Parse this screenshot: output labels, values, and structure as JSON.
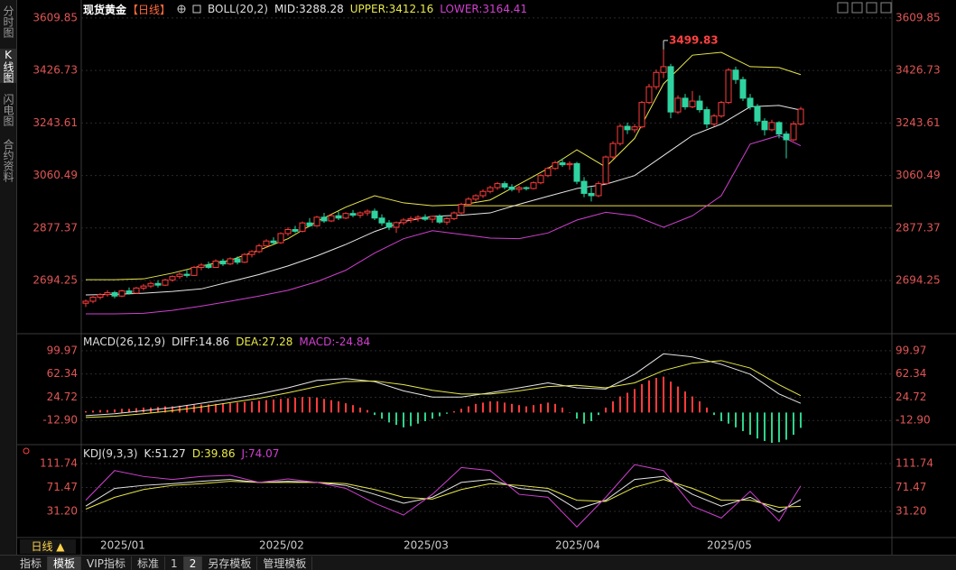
{
  "header": {
    "title": "现货黄金",
    "period": "【日线】"
  },
  "tabs": [
    "分时图",
    "K线图",
    "闪电图",
    "合约资料"
  ],
  "period_button": "日线 ▲",
  "toolbar": [
    "指标",
    "模板",
    "VIP指标",
    "标准",
    "1",
    "2",
    "另存模板",
    "管理模板"
  ],
  "chart_data": [
    {
      "type": "candlestick",
      "indicator": "BOLL(20,2)",
      "up_color": "#ff3b3b",
      "down_color": "#2ed3a0",
      "axis_color": "#e05555",
      "grid": true,
      "ylim": [
        2515,
        3641
      ],
      "yticks": [
        3609.85,
        3426.73,
        3243.61,
        3060.49,
        2877.37,
        2694.25
      ],
      "categories": [
        null,
        null,
        "2025/01",
        null,
        null,
        null,
        null,
        null,
        null,
        null,
        null,
        null,
        null,
        null,
        null,
        null,
        null,
        null,
        null,
        null,
        null,
        null,
        null,
        null,
        "2025/02",
        null,
        null,
        null,
        null,
        null,
        null,
        null,
        null,
        null,
        null,
        null,
        null,
        null,
        null,
        null,
        null,
        null,
        null,
        null,
        "2025/03",
        null,
        null,
        null,
        null,
        null,
        null,
        null,
        null,
        null,
        null,
        null,
        null,
        null,
        null,
        null,
        null,
        null,
        null,
        null,
        null,
        "2025/04",
        null,
        null,
        null,
        null,
        null,
        null,
        null,
        null,
        null,
        null,
        null,
        null,
        null,
        null,
        null,
        null,
        null,
        null,
        null,
        null,
        "2025/05",
        null,
        null,
        null,
        null,
        null,
        null,
        null,
        null,
        null,
        null,
        null,
        null,
        null
      ],
      "candles": [
        [
          2615,
          2628,
          2602,
          2622
        ],
        [
          2622,
          2640,
          2615,
          2636
        ],
        [
          2636,
          2650,
          2628,
          2645
        ],
        [
          2645,
          2660,
          2638,
          2652
        ],
        [
          2652,
          2658,
          2632,
          2640
        ],
        [
          2640,
          2662,
          2636,
          2658
        ],
        [
          2658,
          2670,
          2645,
          2650
        ],
        [
          2650,
          2672,
          2648,
          2668
        ],
        [
          2668,
          2682,
          2660,
          2675
        ],
        [
          2675,
          2690,
          2668,
          2684
        ],
        [
          2684,
          2695,
          2670,
          2678
        ],
        [
          2678,
          2700,
          2675,
          2696
        ],
        [
          2696,
          2712,
          2690,
          2708
        ],
        [
          2708,
          2722,
          2700,
          2716
        ],
        [
          2716,
          2730,
          2705,
          2712
        ],
        [
          2712,
          2745,
          2710,
          2740
        ],
        [
          2740,
          2755,
          2730,
          2748
        ],
        [
          2748,
          2760,
          2735,
          2740
        ],
        [
          2740,
          2768,
          2738,
          2762
        ],
        [
          2762,
          2770,
          2745,
          2752
        ],
        [
          2752,
          2775,
          2748,
          2770
        ],
        [
          2770,
          2778,
          2750,
          2758
        ],
        [
          2758,
          2790,
          2755,
          2785
        ],
        [
          2785,
          2800,
          2775,
          2795
        ],
        [
          2795,
          2822,
          2790,
          2815
        ],
        [
          2815,
          2838,
          2808,
          2832
        ],
        [
          2832,
          2845,
          2820,
          2826
        ],
        [
          2826,
          2862,
          2822,
          2858
        ],
        [
          2858,
          2880,
          2850,
          2872
        ],
        [
          2872,
          2885,
          2860,
          2866
        ],
        [
          2866,
          2900,
          2862,
          2895
        ],
        [
          2895,
          2912,
          2880,
          2885
        ],
        [
          2885,
          2920,
          2882,
          2915
        ],
        [
          2915,
          2930,
          2895,
          2902
        ],
        [
          2902,
          2925,
          2898,
          2920
        ],
        [
          2920,
          2935,
          2905,
          2912
        ],
        [
          2912,
          2932,
          2908,
          2928
        ],
        [
          2928,
          2940,
          2915,
          2922
        ],
        [
          2922,
          2935,
          2912,
          2930
        ],
        [
          2930,
          2942,
          2920,
          2936
        ],
        [
          2936,
          2945,
          2905,
          2912
        ],
        [
          2912,
          2925,
          2885,
          2895
        ],
        [
          2895,
          2905,
          2870,
          2880
        ],
        [
          2880,
          2900,
          2860,
          2896
        ],
        [
          2896,
          2912,
          2888,
          2905
        ],
        [
          2905,
          2918,
          2895,
          2910
        ],
        [
          2910,
          2922,
          2900,
          2915
        ],
        [
          2915,
          2925,
          2902,
          2908
        ],
        [
          2908,
          2920,
          2895,
          2918
        ],
        [
          2918,
          2925,
          2892,
          2898
        ],
        [
          2898,
          2915,
          2888,
          2910
        ],
        [
          2910,
          2935,
          2905,
          2930
        ],
        [
          2930,
          2965,
          2925,
          2960
        ],
        [
          2960,
          2985,
          2955,
          2978
        ],
        [
          2978,
          2995,
          2970,
          2990
        ],
        [
          2990,
          3012,
          2982,
          3005
        ],
        [
          3005,
          3025,
          2998,
          3018
        ],
        [
          3018,
          3038,
          3010,
          3032
        ],
        [
          3032,
          3040,
          3012,
          3020
        ],
        [
          3020,
          3030,
          3005,
          3012
        ],
        [
          3012,
          3025,
          3000,
          3018
        ],
        [
          3018,
          3022,
          3008,
          3015
        ],
        [
          3015,
          3040,
          3012,
          3035
        ],
        [
          3035,
          3065,
          3030,
          3060
        ],
        [
          3060,
          3090,
          3055,
          3085
        ],
        [
          3085,
          3112,
          3080,
          3105
        ],
        [
          3105,
          3120,
          3090,
          3098
        ],
        [
          3098,
          3110,
          3080,
          3102
        ],
        [
          3102,
          3108,
          3030,
          3040
        ],
        [
          3040,
          3055,
          2985,
          2998
        ],
        [
          2998,
          3020,
          2970,
          2990
        ],
        [
          2990,
          3040,
          2985,
          3032
        ],
        [
          3032,
          3130,
          3028,
          3125
        ],
        [
          3125,
          3180,
          3118,
          3172
        ],
        [
          3172,
          3240,
          3165,
          3232
        ],
        [
          3232,
          3245,
          3205,
          3220
        ],
        [
          3220,
          3240,
          3210,
          3230
        ],
        [
          3230,
          3320,
          3225,
          3315
        ],
        [
          3315,
          3380,
          3310,
          3370
        ],
        [
          3370,
          3430,
          3360,
          3420
        ],
        [
          3420,
          3499.83,
          3400,
          3440
        ],
        [
          3440,
          3450,
          3260,
          3282
        ],
        [
          3282,
          3340,
          3275,
          3330
        ],
        [
          3330,
          3345,
          3290,
          3300
        ],
        [
          3300,
          3355,
          3295,
          3320
        ],
        [
          3320,
          3340,
          3280,
          3290
        ],
        [
          3290,
          3300,
          3225,
          3240
        ],
        [
          3240,
          3275,
          3232,
          3268
        ],
        [
          3268,
          3320,
          3262,
          3315
        ],
        [
          3315,
          3435,
          3310,
          3428
        ],
        [
          3428,
          3440,
          3380,
          3395
        ],
        [
          3395,
          3405,
          3320,
          3330
        ],
        [
          3330,
          3345,
          3290,
          3300
        ],
        [
          3300,
          3310,
          3235,
          3250
        ],
        [
          3250,
          3260,
          3200,
          3220
        ],
        [
          3220,
          3255,
          3215,
          3245
        ],
        [
          3245,
          3250,
          3190,
          3205
        ],
        [
          3205,
          3215,
          3120,
          3185
        ],
        [
          3185,
          3250,
          3180,
          3240
        ],
        [
          3240,
          3300,
          3235,
          3292
        ]
      ],
      "x": [
        0,
        4,
        8,
        12,
        16,
        20,
        24,
        28,
        32,
        36,
        40,
        44,
        48,
        52,
        56,
        60,
        64,
        68,
        72,
        76,
        80,
        84,
        88,
        92,
        96,
        99
      ],
      "series": [
        {
          "name": "MID",
          "label": "MID:3288.28",
          "color": "#e6e6e6",
          "values": [
            2644,
            2646,
            2650,
            2656,
            2665,
            2690,
            2715,
            2745,
            2780,
            2820,
            2865,
            2900,
            2918,
            2922,
            2930,
            2960,
            2988,
            3015,
            3030,
            3060,
            3130,
            3200,
            3240,
            3300,
            3305,
            3288.28
          ]
        },
        {
          "name": "UPPER",
          "label": "UPPER:3412.16",
          "color": "#e8e84a",
          "values": [
            2697,
            2697,
            2700,
            2720,
            2745,
            2765,
            2800,
            2840,
            2900,
            2950,
            2990,
            2965,
            2955,
            2958,
            2975,
            3030,
            3085,
            3150,
            3090,
            3190,
            3380,
            3480,
            3490,
            3440,
            3437,
            3412.16
          ]
        },
        {
          "name": "LOWER",
          "label": "LOWER:3164.41",
          "color": "#d040d0",
          "values": [
            2578,
            2578,
            2580,
            2590,
            2605,
            2622,
            2640,
            2660,
            2690,
            2730,
            2790,
            2840,
            2868,
            2855,
            2842,
            2840,
            2860,
            2905,
            2932,
            2920,
            2880,
            2920,
            2990,
            3170,
            3200,
            3164.41
          ]
        }
      ],
      "drawn_line": {
        "value": 2955,
        "start": 52,
        "color": "#f0e040"
      }
    },
    {
      "type": "macd",
      "indicator": "MACD(26,12,9)",
      "axis_color": "#e05555",
      "up_color": "#ff3b3b",
      "down_color": "#2ed38a",
      "grid": true,
      "ylim": [
        -50.5,
        124.6
      ],
      "yticks": [
        99.97,
        62.34,
        24.72,
        {
          "value": -12.9,
          "label": "-12.90"
        }
      ],
      "x": [
        0,
        4,
        8,
        12,
        16,
        20,
        24,
        28,
        32,
        36,
        40,
        44,
        48,
        52,
        56,
        60,
        64,
        68,
        72,
        76,
        80,
        84,
        88,
        92,
        96,
        99
      ],
      "series": [
        {
          "name": "DIFF",
          "label": "DIFF:14.86",
          "color": "#e6e6e6",
          "values": [
            -5,
            -2,
            3,
            8,
            15,
            22,
            30,
            40,
            52,
            55,
            50,
            35,
            25,
            25,
            32,
            40,
            48,
            40,
            38,
            62,
            95,
            90,
            78,
            62,
            30,
            14.86
          ]
        },
        {
          "name": "DEA",
          "label": "DEA:27.28",
          "color": "#e8e84a",
          "values": [
            -8,
            -6,
            -2,
            3,
            9,
            16,
            23,
            32,
            42,
            50,
            51,
            45,
            36,
            30,
            30,
            35,
            42,
            44,
            40,
            48,
            68,
            80,
            84,
            72,
            45,
            27.28
          ]
        }
      ],
      "histogram": {
        "name": "MACD",
        "label": "MACD:-24.84",
        "color": "#d040d0",
        "values": [
          2,
          3,
          4,
          4,
          5,
          6,
          6,
          7,
          8,
          8,
          9,
          10,
          10,
          11,
          12,
          12,
          13,
          13,
          14,
          15,
          15,
          16,
          17,
          18,
          19,
          20,
          21,
          22,
          23,
          24,
          25,
          25,
          24,
          22,
          20,
          18,
          15,
          12,
          8,
          4,
          -4,
          -10,
          -16,
          -20,
          -24,
          -22,
          -18,
          -14,
          -10,
          -6,
          -2,
          2,
          6,
          10,
          14,
          16,
          18,
          18,
          16,
          14,
          12,
          10,
          12,
          14,
          16,
          14,
          8,
          0,
          -10,
          -18,
          -14,
          -4,
          8,
          18,
          26,
          32,
          38,
          46,
          52,
          56,
          58,
          50,
          42,
          34,
          26,
          18,
          8,
          -4,
          -14,
          -18,
          -24,
          -30,
          -36,
          -42,
          -46,
          -49,
          -48,
          -44,
          -36,
          -24.84
        ]
      }
    },
    {
      "type": "kdj",
      "indicator": "KDJ(9,3,3)",
      "axis_color": "#e05555",
      "grid": true,
      "ylim": [
        -11.3,
        140.6
      ],
      "yticks": [
        111.74,
        71.47,
        {
          "value": 31.2,
          "label": "31.20"
        }
      ],
      "x": [
        0,
        4,
        8,
        12,
        16,
        20,
        24,
        28,
        32,
        36,
        40,
        44,
        48,
        52,
        56,
        60,
        64,
        68,
        72,
        76,
        80,
        84,
        88,
        92,
        96,
        99
      ],
      "series": [
        {
          "name": "K",
          "label": "K:51.27",
          "color": "#e6e6e6",
          "values": [
            40,
            70,
            75,
            78,
            82,
            85,
            80,
            82,
            80,
            75,
            60,
            45,
            55,
            80,
            85,
            70,
            65,
            35,
            50,
            85,
            90,
            60,
            40,
            55,
            30,
            51.27
          ]
        },
        {
          "name": "D",
          "label": "D:39.86",
          "color": "#e8e84a",
          "values": [
            35,
            55,
            68,
            75,
            78,
            82,
            80,
            80,
            80,
            78,
            68,
            55,
            52,
            68,
            78,
            75,
            70,
            50,
            48,
            72,
            85,
            70,
            50,
            50,
            38,
            39.86
          ]
        },
        {
          "name": "J",
          "label": "J:74.07",
          "color": "#d040d0",
          "values": [
            50,
            100,
            90,
            85,
            90,
            92,
            80,
            86,
            80,
            70,
            45,
            25,
            60,
            105,
            100,
            60,
            55,
            5,
            55,
            110,
            100,
            40,
            20,
            65,
            15,
            74.07
          ]
        }
      ]
    }
  ]
}
